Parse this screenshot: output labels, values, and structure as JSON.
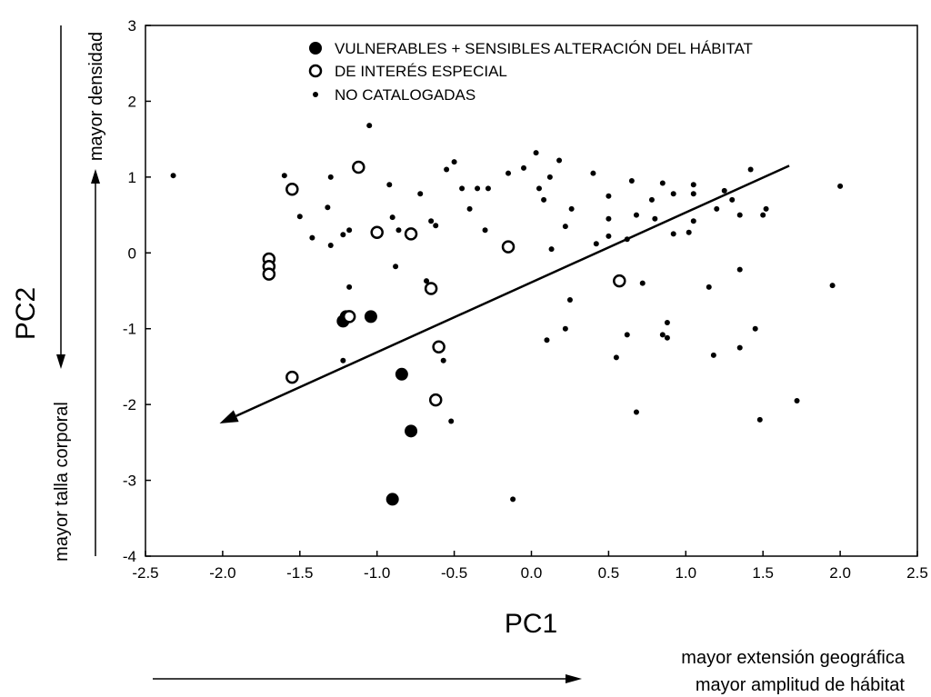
{
  "chart_data": {
    "type": "scatter",
    "xlabel": "PC1",
    "ylabel": "PC2",
    "xlim": [
      -2.5,
      2.5
    ],
    "ylim": [
      -4,
      3
    ],
    "xticks": [
      "-2.5",
      "-2.0",
      "-1.5",
      "-1.0",
      "-0.5",
      "0.0",
      "0.5",
      "1.0",
      "1.5",
      "2.0",
      "2.5"
    ],
    "yticks": [
      "3",
      "2",
      "1",
      "0",
      "-1",
      "-2",
      "-3",
      "-4"
    ],
    "grid": false,
    "legend_position": "top",
    "series": [
      {
        "name": "VULNERABLES + SENSIBLES ALTERACIÓN DEL HÁBITAT",
        "marker": "filled-large",
        "points": [
          [
            -1.22,
            -0.9
          ],
          [
            -1.2,
            -0.84
          ],
          [
            -1.04,
            -0.84
          ],
          [
            -0.84,
            -1.6
          ],
          [
            -0.78,
            -2.35
          ],
          [
            -0.9,
            -3.25
          ]
        ]
      },
      {
        "name": "DE INTERÉS ESPECIAL",
        "marker": "open",
        "points": [
          [
            -1.7,
            -0.08
          ],
          [
            -1.7,
            -0.18
          ],
          [
            -1.7,
            -0.28
          ],
          [
            -1.55,
            0.84
          ],
          [
            -1.12,
            1.13
          ],
          [
            -1.0,
            0.27
          ],
          [
            -0.78,
            0.25
          ],
          [
            -1.18,
            -0.84
          ],
          [
            -0.15,
            0.08
          ],
          [
            -0.65,
            -0.47
          ],
          [
            -0.6,
            -1.24
          ],
          [
            -0.62,
            -1.94
          ],
          [
            0.57,
            -0.37
          ],
          [
            -1.55,
            -1.64
          ]
        ]
      },
      {
        "name": "NO CATALOGADAS",
        "marker": "small-dot",
        "points": [
          [
            -2.32,
            1.02
          ],
          [
            -1.6,
            1.02
          ],
          [
            -1.5,
            0.48
          ],
          [
            -1.42,
            0.2
          ],
          [
            -1.32,
            0.6
          ],
          [
            -1.3,
            1.0
          ],
          [
            -1.3,
            0.1
          ],
          [
            -1.22,
            0.24
          ],
          [
            -1.18,
            0.3
          ],
          [
            -1.18,
            -0.45
          ],
          [
            -1.22,
            -1.42
          ],
          [
            -1.05,
            1.68
          ],
          [
            -0.92,
            0.9
          ],
          [
            -0.9,
            0.47
          ],
          [
            -0.88,
            -0.18
          ],
          [
            -0.86,
            0.3
          ],
          [
            -0.72,
            0.78
          ],
          [
            -0.65,
            0.42
          ],
          [
            -0.62,
            0.36
          ],
          [
            -0.55,
            1.1
          ],
          [
            -0.5,
            1.2
          ],
          [
            -0.68,
            -0.37
          ],
          [
            -0.57,
            -1.42
          ],
          [
            -0.52,
            -2.22
          ],
          [
            -0.45,
            0.85
          ],
          [
            -0.4,
            0.58
          ],
          [
            -0.35,
            0.85
          ],
          [
            -0.3,
            0.3
          ],
          [
            -0.28,
            0.85
          ],
          [
            -0.15,
            1.05
          ],
          [
            -0.05,
            1.12
          ],
          [
            0.03,
            1.32
          ],
          [
            0.05,
            0.85
          ],
          [
            0.08,
            0.7
          ],
          [
            0.12,
            1.0
          ],
          [
            0.13,
            0.05
          ],
          [
            0.18,
            1.22
          ],
          [
            0.22,
            0.35
          ],
          [
            0.26,
            0.58
          ],
          [
            0.25,
            -0.62
          ],
          [
            0.1,
            -1.15
          ],
          [
            0.22,
            -1.0
          ],
          [
            -0.12,
            -3.25
          ],
          [
            0.4,
            1.05
          ],
          [
            0.42,
            0.12
          ],
          [
            0.5,
            0.75
          ],
          [
            0.5,
            0.45
          ],
          [
            0.5,
            0.22
          ],
          [
            0.55,
            -1.38
          ],
          [
            0.62,
            0.18
          ],
          [
            0.62,
            -1.08
          ],
          [
            0.65,
            0.95
          ],
          [
            0.68,
            0.5
          ],
          [
            0.72,
            -0.4
          ],
          [
            0.78,
            0.7
          ],
          [
            0.8,
            0.45
          ],
          [
            0.85,
            0.92
          ],
          [
            0.85,
            -1.08
          ],
          [
            0.88,
            -1.12
          ],
          [
            0.88,
            -0.92
          ],
          [
            0.92,
            0.78
          ],
          [
            0.92,
            0.25
          ],
          [
            1.05,
            0.9
          ],
          [
            1.05,
            0.78
          ],
          [
            1.02,
            0.27
          ],
          [
            1.05,
            0.42
          ],
          [
            1.15,
            -0.45
          ],
          [
            1.2,
            0.58
          ],
          [
            1.18,
            -1.35
          ],
          [
            1.25,
            0.82
          ],
          [
            1.3,
            0.7
          ],
          [
            1.35,
            0.5
          ],
          [
            1.35,
            -0.22
          ],
          [
            1.35,
            -1.25
          ],
          [
            1.42,
            1.1
          ],
          [
            1.45,
            -1.0
          ],
          [
            1.48,
            -2.2
          ],
          [
            1.5,
            0.5
          ],
          [
            1.52,
            0.58
          ],
          [
            1.72,
            -1.95
          ],
          [
            1.95,
            -0.43
          ],
          [
            2.0,
            0.88
          ],
          [
            0.68,
            -2.1
          ]
        ]
      }
    ],
    "arrow": {
      "from": [
        1.67,
        1.15
      ],
      "to": [
        -2.02,
        -2.25
      ]
    }
  },
  "annotations": {
    "up_label": "mayor densidad",
    "down_label": "mayor talla corporal",
    "right_label_1": "mayor extensión geográfica",
    "right_label_2": "mayor amplitud de hábitat"
  }
}
